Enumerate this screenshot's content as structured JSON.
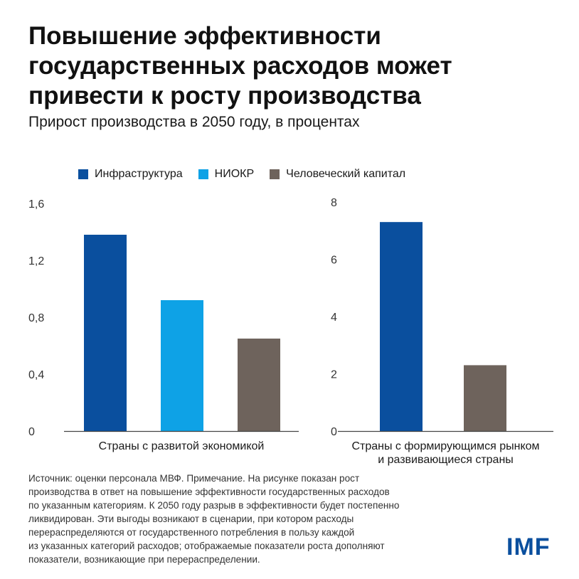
{
  "header": {
    "title": "Повышение эффективности государственных расходов может привести к росту производства",
    "subtitle": "Прирост производства в 2050 году, в процентах"
  },
  "legend": {
    "items": [
      {
        "label": "Инфраструктура",
        "color": "#0a4f9e"
      },
      {
        "label": "НИОКР",
        "color": "#0ea2e6"
      },
      {
        "label": "Человеческий капитал",
        "color": "#6e635c"
      }
    ]
  },
  "chart_data": [
    {
      "type": "bar",
      "category_label": "Страны с развитой экономикой",
      "categories": [
        "Инфраструктура",
        "НИОКР",
        "Человеческий капитал"
      ],
      "values": [
        1.38,
        0.92,
        0.65
      ],
      "ylim": [
        0,
        1.6
      ],
      "yticks": [
        "0",
        "0,4",
        "0,8",
        "1,2",
        "1,6"
      ],
      "ytick_values": [
        0,
        0.4,
        0.8,
        1.2,
        1.6
      ]
    },
    {
      "type": "bar",
      "category_label": [
        "Страны с формирующимся рынком",
        "и развивающиеся страны"
      ],
      "categories": [
        "Инфраструктура",
        "Человеческий капитал"
      ],
      "values": [
        7.3,
        2.3
      ],
      "ylim": [
        0,
        8
      ],
      "yticks": [
        "0",
        "2",
        "4",
        "6",
        "8"
      ],
      "ytick_values": [
        0,
        2,
        4,
        6,
        8
      ]
    }
  ],
  "footnote": {
    "lines": [
      "Источник: оценки персонала МВФ. Примечание. На рисунке показан рост",
      "производства в ответ на повышение эффективности государственных расходов",
      "по указанным категориям. К 2050 году разрыв в эффективности будет постепенно",
      "ликвидирован. Эти выгоды возникают в сценарии, при котором расходы",
      "перераспределяются от государственного потребления в пользу каждой",
      "из указанных категорий расходов; отображаемые показатели роста дополняют",
      "показатели, возникающие при перераспределении."
    ]
  },
  "logo": {
    "text": "IMF"
  }
}
